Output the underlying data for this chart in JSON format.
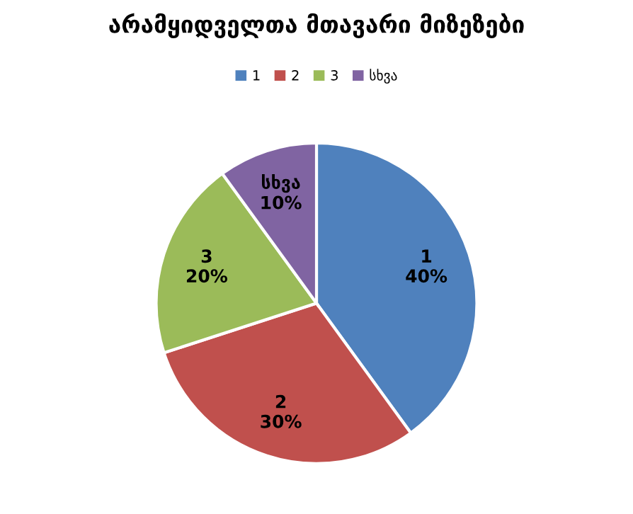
{
  "chart_data": {
    "type": "pie",
    "title": "არამყიდველთა მთავარი მიზეზები",
    "categories": [
      "1",
      "2",
      "3",
      "სხვა"
    ],
    "values": [
      40,
      30,
      20,
      10
    ],
    "value_labels": [
      "40%",
      "30%",
      "20%",
      "10%"
    ],
    "colors": [
      "#4f81bd",
      "#c0504d",
      "#9bbb59",
      "#8064a2"
    ],
    "legend": "top"
  }
}
